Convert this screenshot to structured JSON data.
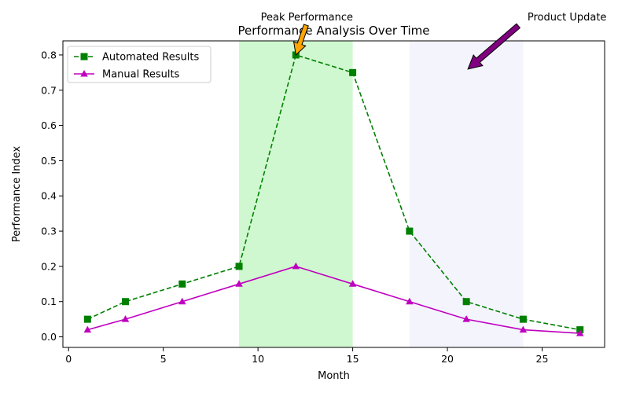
{
  "chart_data": {
    "type": "line",
    "title": "Performance Analysis Over Time",
    "xlabel": "Month",
    "ylabel": "Performance Index",
    "xlim": [
      -0.3,
      28.3
    ],
    "ylim": [
      -0.03,
      0.84
    ],
    "xticks": [
      0,
      5,
      10,
      15,
      20,
      25
    ],
    "yticks": [
      0.0,
      0.1,
      0.2,
      0.3,
      0.4,
      0.5,
      0.6,
      0.7,
      0.8
    ],
    "x": [
      1,
      3,
      6,
      9,
      12,
      15,
      18,
      21,
      24,
      27
    ],
    "series": [
      {
        "name": "Automated Results",
        "color": "#008000",
        "line": "dashed",
        "marker": "square",
        "values": [
          0.05,
          0.1,
          0.15,
          0.2,
          0.8,
          0.75,
          0.3,
          0.1,
          0.05,
          0.02
        ]
      },
      {
        "name": "Manual Results",
        "color": "#bf00bf",
        "line": "solid",
        "marker": "triangle",
        "values": [
          0.02,
          0.05,
          0.1,
          0.15,
          0.2,
          0.15,
          0.1,
          0.05,
          0.02,
          0.01
        ]
      }
    ],
    "spans": [
      {
        "x0": 9,
        "x1": 15,
        "color": "#90ee90",
        "opacity": 0.42
      },
      {
        "x0": 18,
        "x1": 24,
        "color": "#e6e6fa",
        "opacity": 0.45
      }
    ],
    "annotations": [
      {
        "text": "Peak Performance",
        "target": [
          12,
          0.8
        ],
        "color": "#ffa500"
      },
      {
        "text": "Product Update",
        "target": [
          21,
          0.76
        ],
        "color": "#800080"
      }
    ],
    "legend": "upper-left",
    "grid": false
  }
}
